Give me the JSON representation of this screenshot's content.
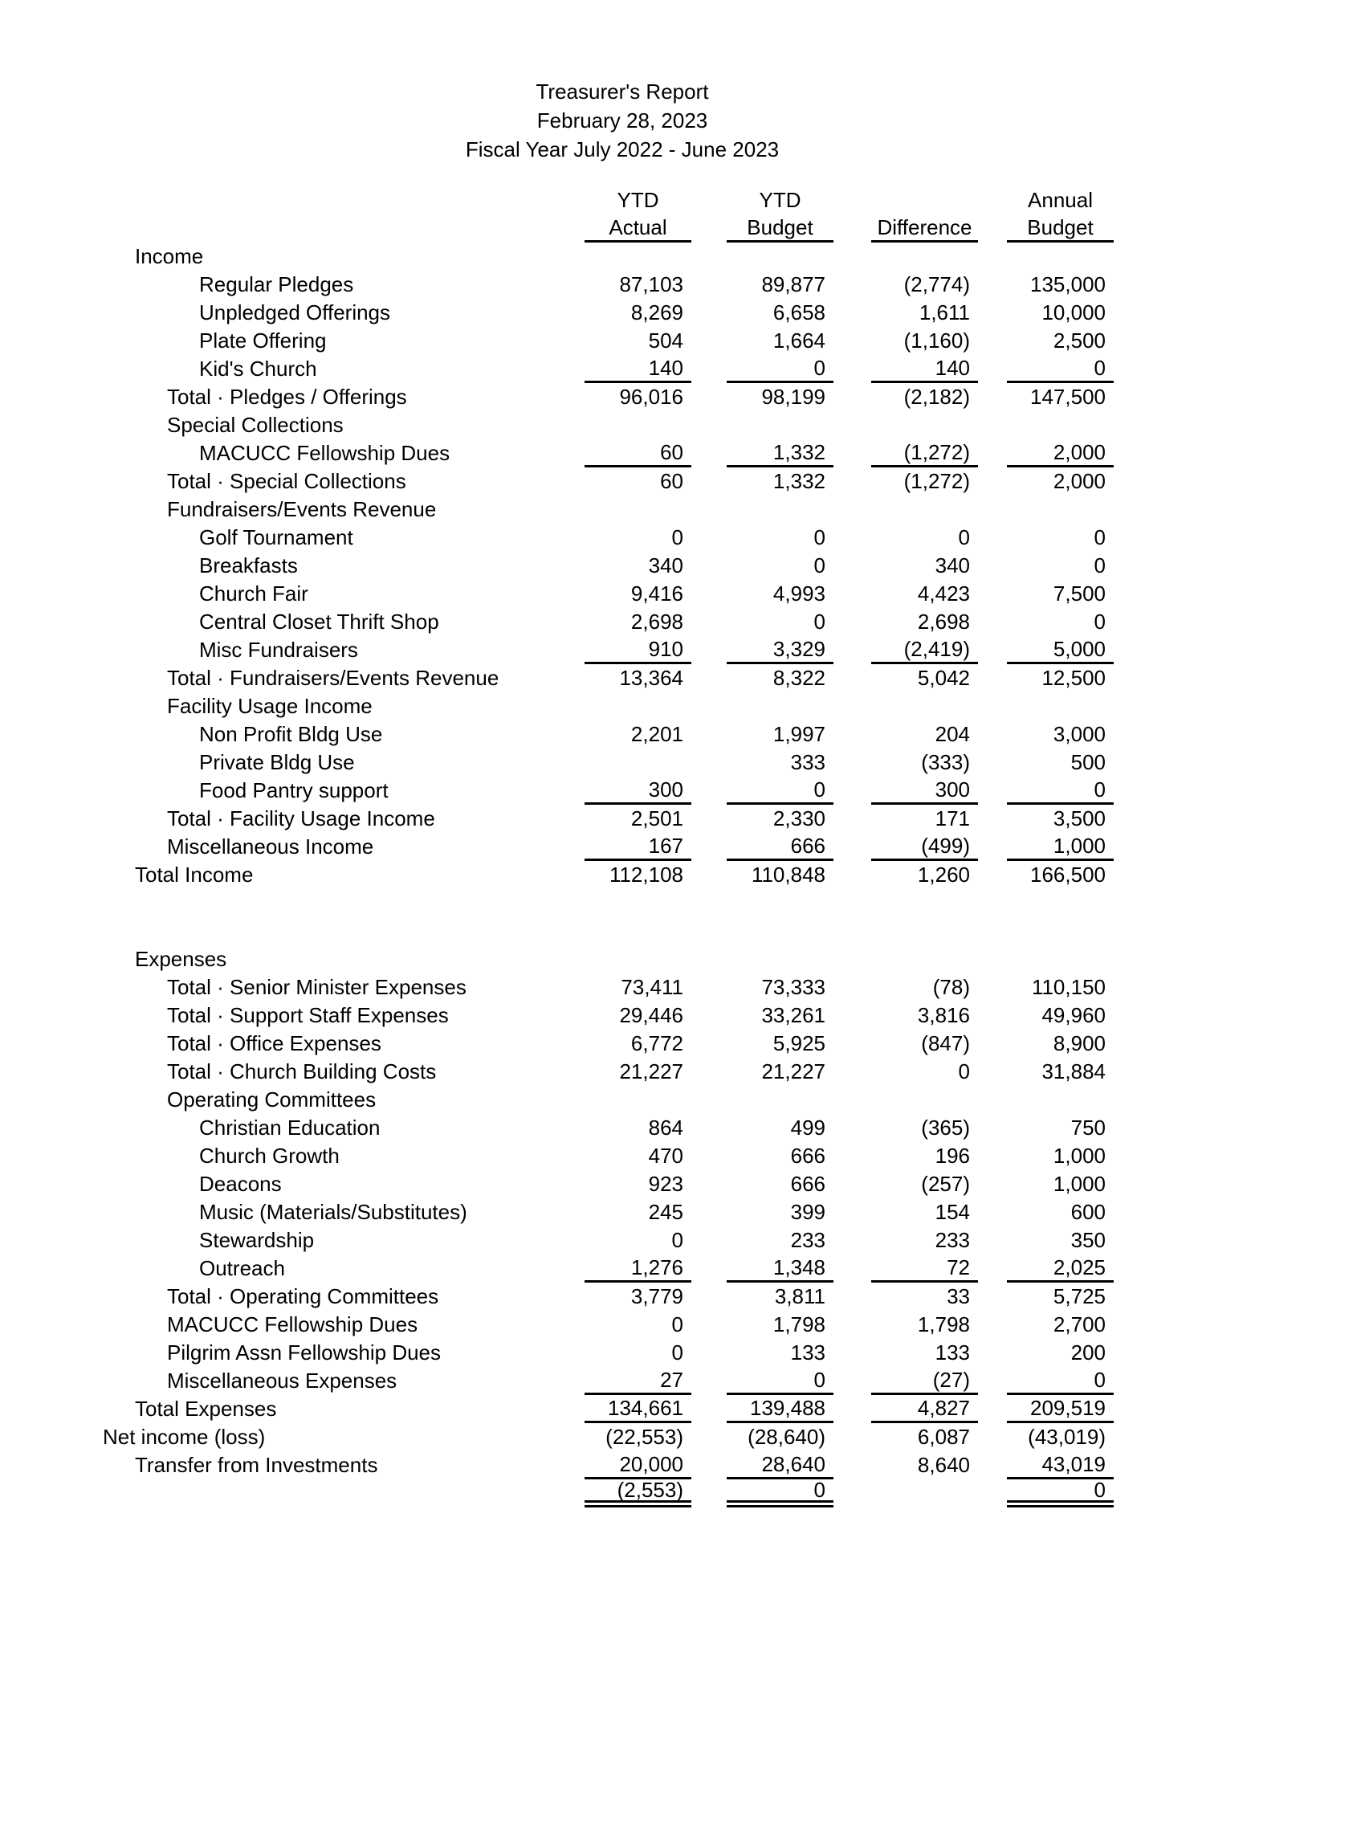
{
  "document": {
    "title": "Treasurer's Report",
    "date": "February 28, 2023",
    "fiscal_year": "Fiscal Year July 2022 - June 2023"
  },
  "table": {
    "column_headers": [
      {
        "top": "YTD",
        "bottom": "Actual"
      },
      {
        "top": "YTD",
        "bottom": "Budget"
      },
      {
        "top": "",
        "bottom": "Difference"
      },
      {
        "top": "Annual",
        "bottom": "Budget"
      }
    ],
    "cell_names": [
      "cell-ytd-actual",
      "cell-ytd-budget",
      "cell-difference",
      "cell-annual-budget"
    ],
    "rows": [
      {
        "name": "row-income-header",
        "label": "Income",
        "indent": 1,
        "values": [
          "",
          "",
          "",
          ""
        ]
      },
      {
        "name": "row-regular-pledges",
        "label": "Regular Pledges",
        "indent": 3,
        "values": [
          "87,103",
          "89,877",
          "(2,774)",
          "135,000"
        ]
      },
      {
        "name": "row-unpledged-offerings",
        "label": "Unpledged Offerings",
        "indent": 3,
        "values": [
          "8,269",
          "6,658",
          "1,611",
          "10,000"
        ]
      },
      {
        "name": "row-plate-offering",
        "label": "Plate Offering",
        "indent": 3,
        "values": [
          "504",
          "1,664",
          "(1,160)",
          "2,500"
        ]
      },
      {
        "name": "row-kids-church",
        "label": "Kid's Church",
        "indent": 3,
        "values": [
          "140",
          "0",
          "140",
          "0"
        ],
        "rule": [
          1,
          2,
          3,
          4
        ]
      },
      {
        "name": "row-total-pledges-offerings",
        "label": "Total · Pledges / Offerings",
        "indent": 2,
        "values": [
          "96,016",
          "98,199",
          "(2,182)",
          "147,500"
        ]
      },
      {
        "name": "row-special-collections-header",
        "label": "Special Collections",
        "indent": 2,
        "values": [
          "",
          "",
          "",
          ""
        ]
      },
      {
        "name": "row-macucc-fellowship-dues-income",
        "label": "MACUCC Fellowship Dues",
        "indent": 3,
        "values": [
          "60",
          "1,332",
          "(1,272)",
          "2,000"
        ],
        "rule": [
          1,
          2,
          3,
          4
        ]
      },
      {
        "name": "row-total-special-collections",
        "label": "Total · Special Collections",
        "indent": 2,
        "values": [
          "60",
          "1,332",
          "(1,272)",
          "2,000"
        ]
      },
      {
        "name": "row-fundraisers-header",
        "label": "Fundraisers/Events Revenue",
        "indent": 2,
        "values": [
          "",
          "",
          "",
          ""
        ]
      },
      {
        "name": "row-golf-tournament",
        "label": "Golf Tournament",
        "indent": 3,
        "values": [
          "0",
          "0",
          "0",
          "0"
        ]
      },
      {
        "name": "row-breakfasts",
        "label": "Breakfasts",
        "indent": 3,
        "values": [
          "340",
          "0",
          "340",
          "0"
        ]
      },
      {
        "name": "row-church-fair",
        "label": "Church Fair",
        "indent": 3,
        "values": [
          "9,416",
          "4,993",
          "4,423",
          "7,500"
        ]
      },
      {
        "name": "row-central-closet-thrift-shop",
        "label": "Central Closet Thrift Shop",
        "indent": 3,
        "values": [
          "2,698",
          "0",
          "2,698",
          "0"
        ]
      },
      {
        "name": "row-misc-fundraisers",
        "label": "Misc Fundraisers",
        "indent": 3,
        "values": [
          "910",
          "3,329",
          "(2,419)",
          "5,000"
        ],
        "rule": [
          1,
          2,
          3,
          4
        ]
      },
      {
        "name": "row-total-fundraisers",
        "label": "Total · Fundraisers/Events Revenue",
        "indent": 2,
        "values": [
          "13,364",
          "8,322",
          "5,042",
          "12,500"
        ]
      },
      {
        "name": "row-facility-usage-header",
        "label": "Facility Usage Income",
        "indent": 2,
        "values": [
          "",
          "",
          "",
          ""
        ]
      },
      {
        "name": "row-non-profit-bldg-use",
        "label": "Non Profit Bldg Use",
        "indent": 3,
        "values": [
          "2,201",
          "1,997",
          "204",
          "3,000"
        ]
      },
      {
        "name": "row-private-bldg-use",
        "label": "Private Bldg Use",
        "indent": 3,
        "values": [
          "",
          "333",
          "(333)",
          "500"
        ]
      },
      {
        "name": "row-food-pantry-support",
        "label": "Food Pantry support",
        "indent": 3,
        "values": [
          "300",
          "0",
          "300",
          "0"
        ],
        "rule": [
          1,
          2,
          3,
          4
        ]
      },
      {
        "name": "row-total-facility-usage",
        "label": "Total · Facility Usage Income",
        "indent": 2,
        "values": [
          "2,501",
          "2,330",
          "171",
          "3,500"
        ]
      },
      {
        "name": "row-miscellaneous-income",
        "label": "Miscellaneous Income",
        "indent": 2,
        "values": [
          "167",
          "666",
          "(499)",
          "1,000"
        ],
        "rule": [
          1,
          2,
          3,
          4
        ]
      },
      {
        "name": "row-total-income",
        "label": "Total Income",
        "indent": 1,
        "values": [
          "112,108",
          "110,848",
          "1,260",
          "166,500"
        ]
      },
      {
        "name": "row-spacer",
        "spacer": true
      },
      {
        "name": "row-spacer",
        "spacer": true
      },
      {
        "name": "row-expenses-header",
        "label": "Expenses",
        "indent": 1,
        "values": [
          "",
          "",
          "",
          ""
        ]
      },
      {
        "name": "row-total-senior-minister",
        "label": "Total · Senior Minister Expenses",
        "indent": 2,
        "values": [
          "73,411",
          "73,333",
          "(78)",
          "110,150"
        ]
      },
      {
        "name": "row-total-support-staff",
        "label": "Total · Support Staff Expenses",
        "indent": 2,
        "values": [
          "29,446",
          "33,261",
          "3,816",
          "49,960"
        ]
      },
      {
        "name": "row-total-office-expenses",
        "label": "Total · Office Expenses",
        "indent": 2,
        "values": [
          "6,772",
          "5,925",
          "(847)",
          "8,900"
        ]
      },
      {
        "name": "row-total-church-building-costs",
        "label": "Total · Church Building Costs",
        "indent": 2,
        "values": [
          "21,227",
          "21,227",
          "0",
          "31,884"
        ]
      },
      {
        "name": "row-operating-committees-header",
        "label": "Operating Committees",
        "indent": 2,
        "values": [
          "",
          "",
          "",
          ""
        ]
      },
      {
        "name": "row-christian-education",
        "label": "Christian Education",
        "indent": 3,
        "values": [
          "864",
          "499",
          "(365)",
          "750"
        ]
      },
      {
        "name": "row-church-growth",
        "label": "Church Growth",
        "indent": 3,
        "values": [
          "470",
          "666",
          "196",
          "1,000"
        ]
      },
      {
        "name": "row-deacons",
        "label": "Deacons",
        "indent": 3,
        "values": [
          "923",
          "666",
          "(257)",
          "1,000"
        ]
      },
      {
        "name": "row-music-materials-substitutes",
        "label": "Music (Materials/Substitutes)",
        "indent": 3,
        "values": [
          "245",
          "399",
          "154",
          "600"
        ]
      },
      {
        "name": "row-stewardship",
        "label": "Stewardship",
        "indent": 3,
        "values": [
          "0",
          "233",
          "233",
          "350"
        ]
      },
      {
        "name": "row-outreach",
        "label": "Outreach",
        "indent": 3,
        "values": [
          "1,276",
          "1,348",
          "72",
          "2,025"
        ],
        "rule": [
          1,
          2,
          3,
          4
        ]
      },
      {
        "name": "row-total-operating-committees",
        "label": "Total · Operating Committees",
        "indent": 2,
        "values": [
          "3,779",
          "3,811",
          "33",
          "5,725"
        ]
      },
      {
        "name": "row-macucc-fellowship-dues-expense",
        "label": "MACUCC Fellowship Dues",
        "indent": 2,
        "values": [
          "0",
          "1,798",
          "1,798",
          "2,700"
        ]
      },
      {
        "name": "row-pilgrim-assn-fellowship-dues",
        "label": "Pilgrim Assn Fellowship Dues",
        "indent": 2,
        "values": [
          "0",
          "133",
          "133",
          "200"
        ]
      },
      {
        "name": "row-miscellaneous-expenses",
        "label": "Miscellaneous Expenses",
        "indent": 2,
        "values": [
          "27",
          "0",
          "(27)",
          "0"
        ],
        "rule": [
          1,
          2,
          3,
          4
        ]
      },
      {
        "name": "row-total-expenses",
        "label": "Total Expenses",
        "indent": 1,
        "values": [
          "134,661",
          "139,488",
          "4,827",
          "209,519"
        ],
        "rule": [
          1,
          2,
          3,
          4
        ]
      },
      {
        "name": "row-net-income-loss",
        "label": "Net income (loss)",
        "indent": 0,
        "values": [
          "(22,553)",
          "(28,640)",
          "6,087",
          "(43,019)"
        ]
      },
      {
        "name": "row-transfer-from-investments",
        "label": "Transfer from Investments",
        "indent": 1,
        "values": [
          "20,000",
          "28,640",
          "8,640",
          "43,019"
        ],
        "rule": [
          1,
          2,
          4
        ]
      },
      {
        "name": "row-net-after-transfers",
        "label": "",
        "indent": 0,
        "values": [
          "(2,553)",
          "0",
          "",
          "0"
        ],
        "rule": [
          1,
          2,
          4
        ],
        "rule_style": "double"
      }
    ]
  }
}
